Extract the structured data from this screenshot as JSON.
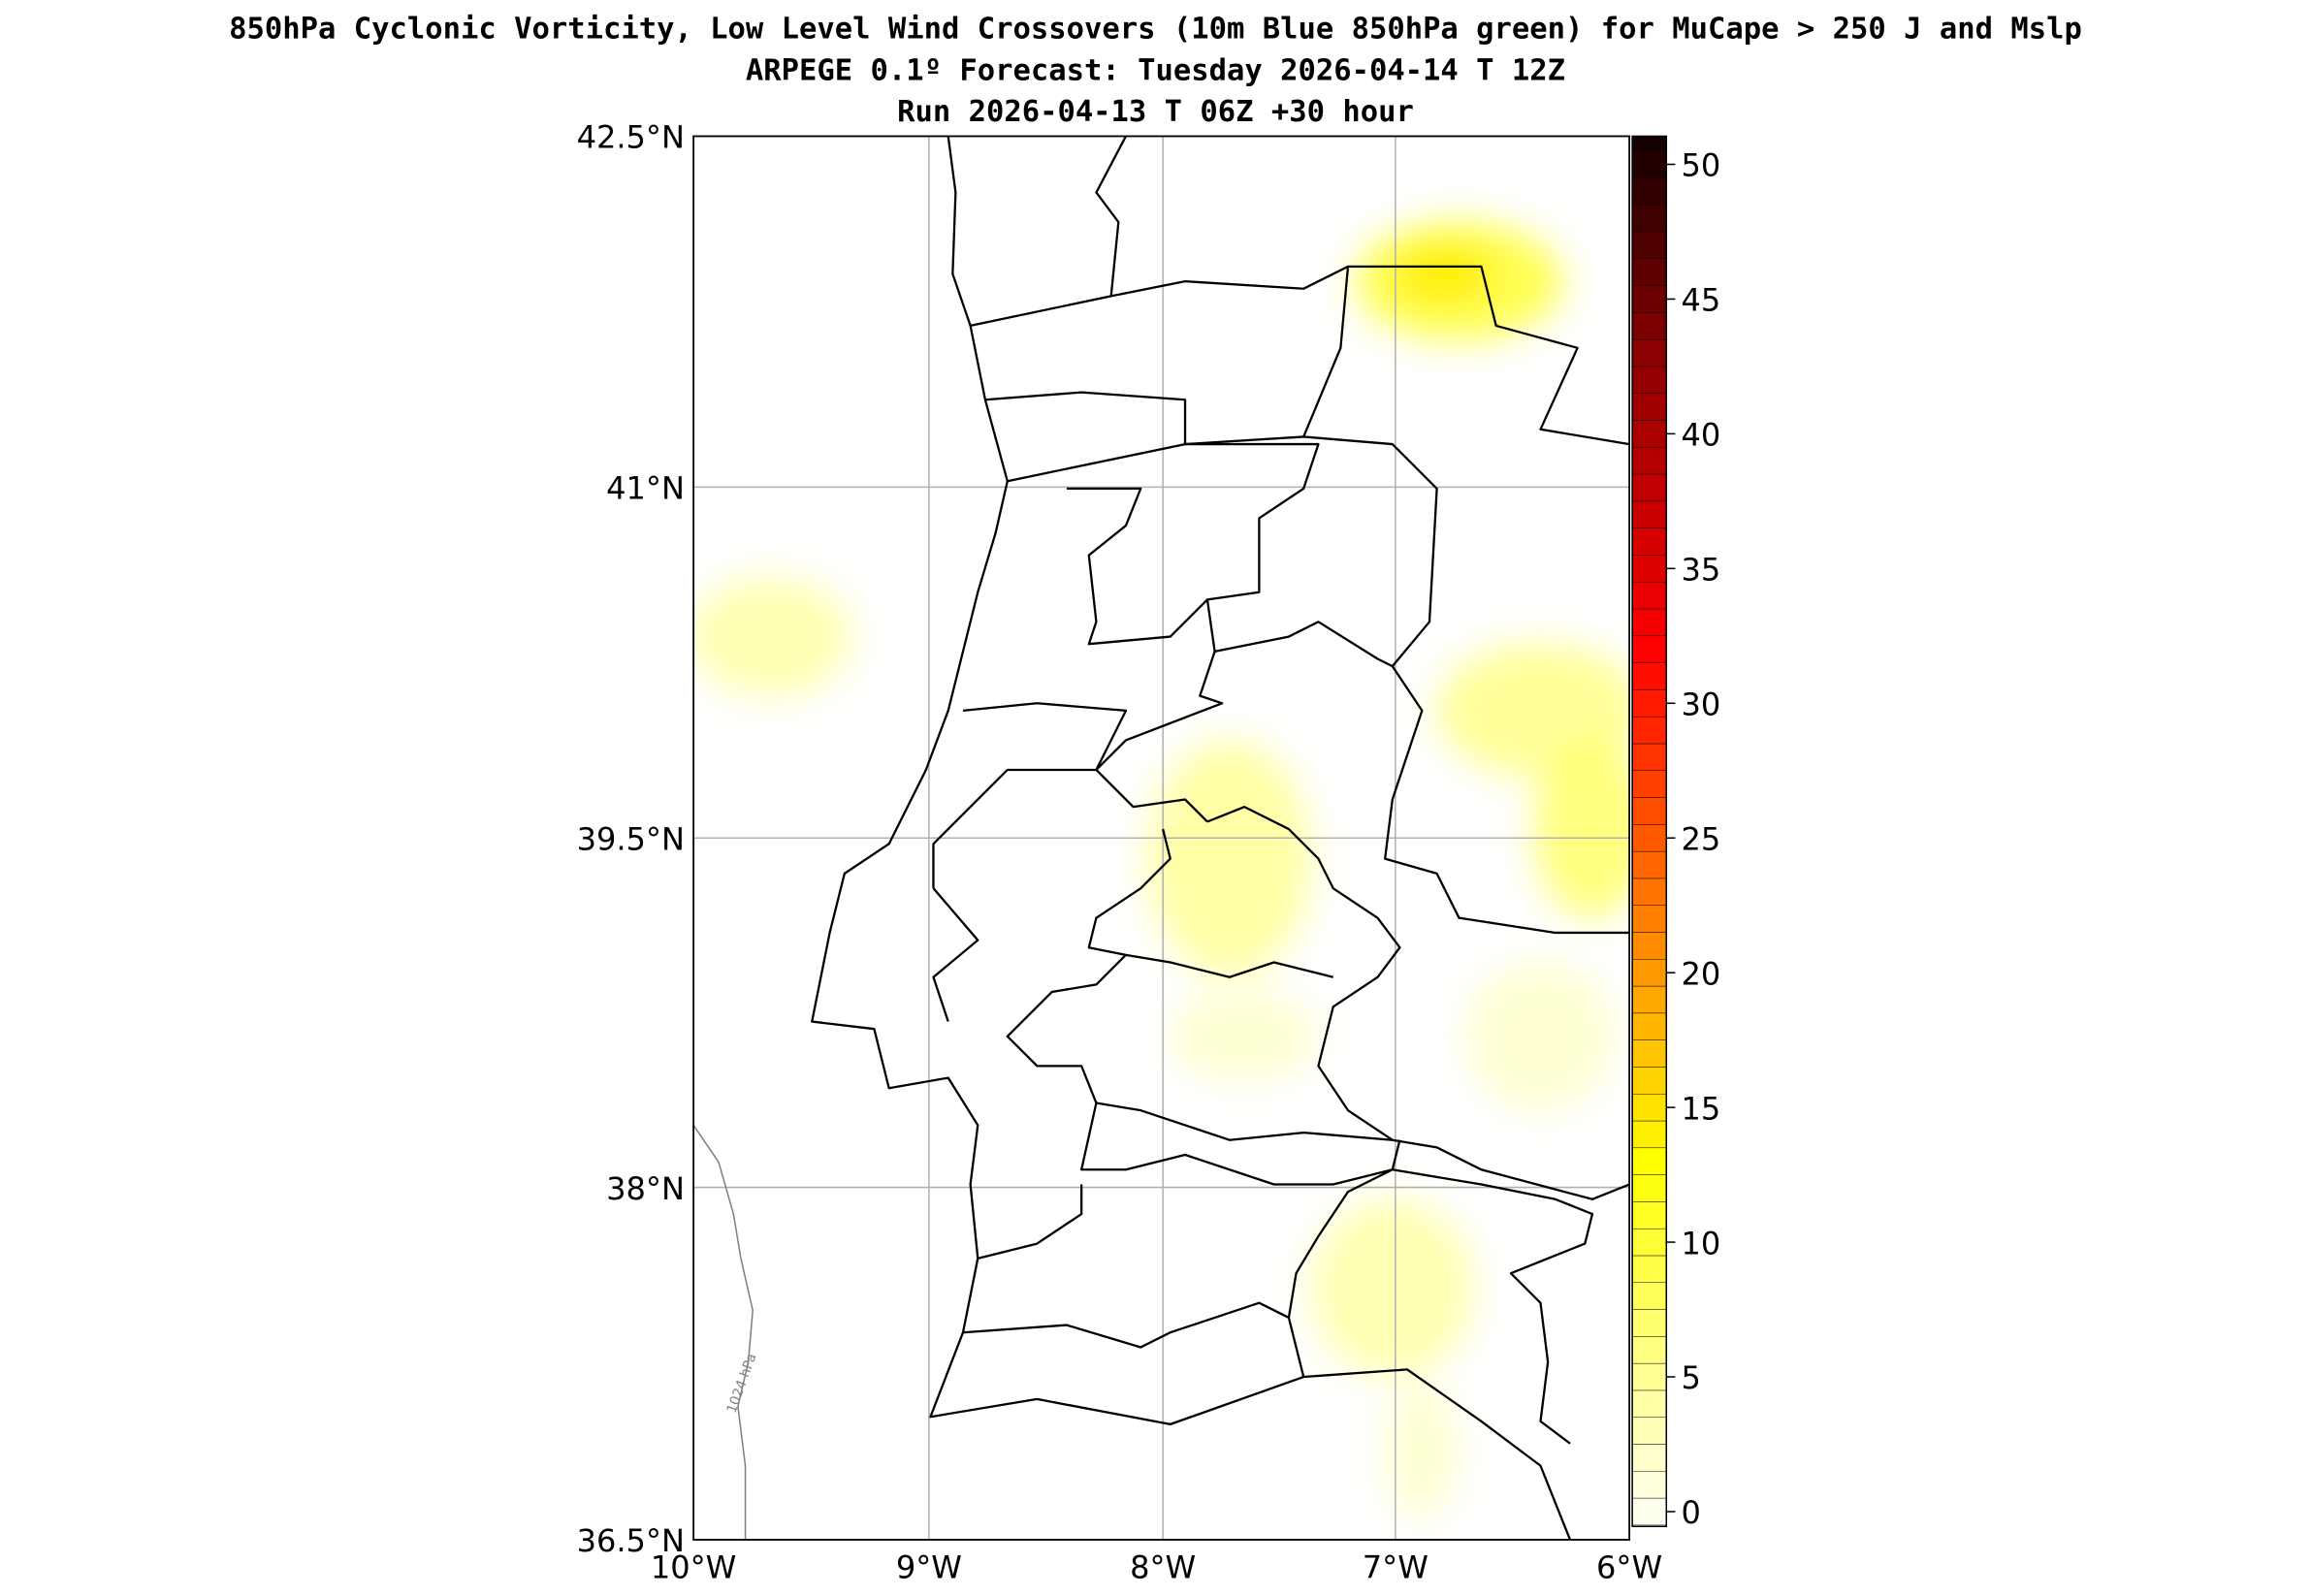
{
  "title": {
    "line1": "850hPa Cyclonic Vorticity, Low Level Wind Crossovers (10m Blue 850hPa green) for MuCape > 250 J and Mslp",
    "line2": "ARPEGE 0.1º Forecast: Tuesday 2026-04-14 T 12Z",
    "line3": "Run 2026-04-13 T 06Z +30 hour"
  },
  "axes": {
    "lon_labels": [
      "10°W",
      "9°W",
      "8°W",
      "7°W",
      "6°W"
    ],
    "lat_labels": [
      "42.5°N",
      "41°N",
      "39.5°N",
      "38°N",
      "36.5°N"
    ],
    "lon_range": [
      -10,
      -6
    ],
    "lat_range": [
      36.5,
      42.5
    ]
  },
  "isobar": {
    "label": "1024 hPa",
    "value": 1024,
    "color": "#808080"
  },
  "colorbar": {
    "ticks": [
      "50",
      "45",
      "40",
      "35",
      "30",
      "25",
      "20",
      "15",
      "10",
      "5",
      "0"
    ],
    "range": [
      0,
      51
    ],
    "colors": [
      "#fffff0",
      "#ffff00",
      "#ff9900",
      "#ff0000",
      "#8b0000",
      "#140000"
    ]
  }
}
